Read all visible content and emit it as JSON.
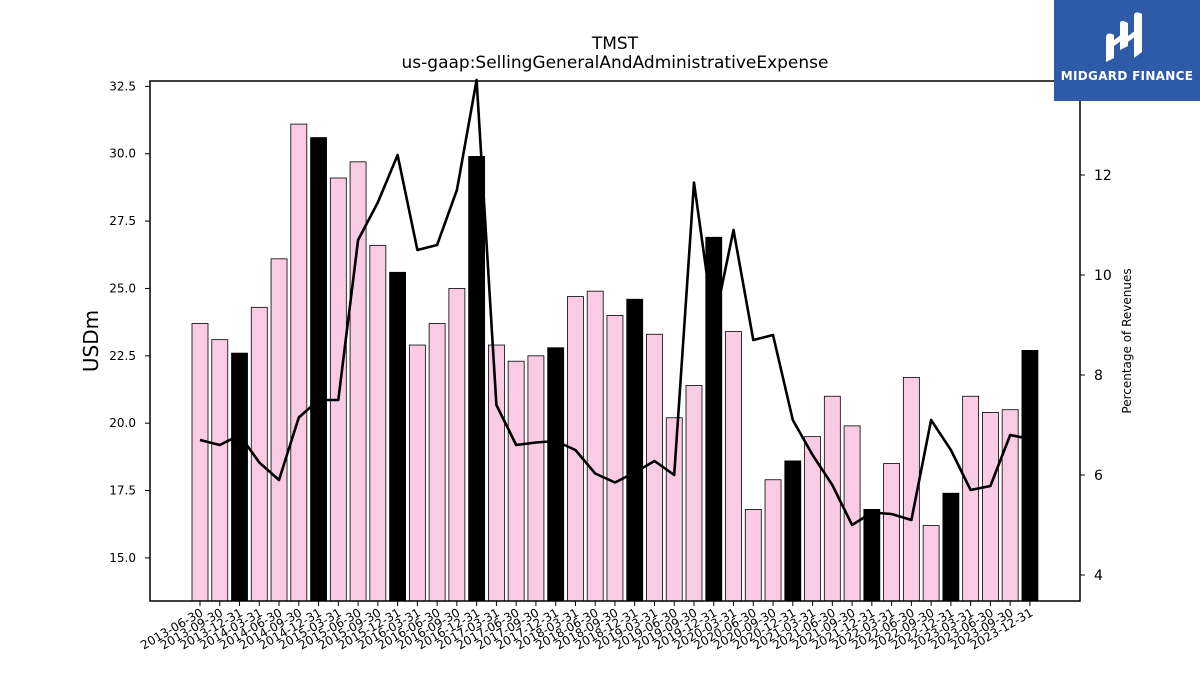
{
  "chart_data": {
    "type": "bar",
    "title": "TMST",
    "subtitle": "us-gaap:SellingGeneralAndAdministrativeExpense",
    "ylabel": "USDm",
    "y2label": "Percentage of Revenues",
    "ylim": [
      13.4,
      32.7
    ],
    "y2lim": [
      3.48,
      13.88
    ],
    "yticks": [
      "15.0",
      "17.5",
      "20.0",
      "22.5",
      "25.0",
      "27.5",
      "30.0",
      "32.5"
    ],
    "y2ticks": [
      "4",
      "6",
      "8",
      "10",
      "12"
    ],
    "categories": [
      "2013-06-30",
      "2013-09-30",
      "2013-12-31",
      "2014-03-31",
      "2014-06-30",
      "2014-09-30",
      "2014-12-31",
      "2015-03-31",
      "2015-06-30",
      "2015-09-30",
      "2015-12-31",
      "2016-03-31",
      "2016-06-30",
      "2016-09-30",
      "2016-12-31",
      "2017-03-31",
      "2017-06-30",
      "2017-09-30",
      "2017-12-31",
      "2018-03-31",
      "2018-06-30",
      "2018-09-30",
      "2018-12-31",
      "2019-03-31",
      "2019-06-30",
      "2019-09-30",
      "2019-12-31",
      "2020-03-31",
      "2020-06-30",
      "2020-09-30",
      "2020-12-31",
      "2021-03-31",
      "2021-06-30",
      "2021-09-30",
      "2021-12-31",
      "2022-03-31",
      "2022-06-30",
      "2022-09-30",
      "2022-12-31",
      "2023-03-31",
      "2023-06-30",
      "2023-09-30",
      "2023-12-31"
    ],
    "series": [
      {
        "type": "bar",
        "values": [
          23.7,
          23.1,
          22.6,
          24.3,
          26.1,
          31.1,
          30.6,
          29.1,
          29.7,
          26.6,
          25.6,
          22.9,
          23.7,
          25.0,
          29.9,
          22.9,
          22.3,
          22.5,
          22.8,
          24.7,
          24.9,
          24.0,
          24.6,
          23.3,
          20.2,
          21.4,
          26.9,
          23.4,
          16.8,
          17.9,
          18.6,
          19.5,
          21.0,
          19.9,
          16.8,
          18.5,
          21.7,
          16.2,
          17.4,
          21.0,
          20.4,
          20.5,
          22.7
        ],
        "colors": {
          "quarter": "#f9cce3",
          "year_end": "#000000"
        }
      },
      {
        "type": "line",
        "values": [
          6.7,
          6.6,
          6.8,
          6.25,
          5.9,
          7.15,
          7.5,
          7.5,
          10.7,
          11.45,
          12.4,
          10.5,
          10.6,
          11.7,
          13.9,
          7.4,
          6.6,
          6.65,
          6.68,
          6.5,
          6.03,
          5.85,
          6.05,
          6.28,
          6.0,
          11.85,
          9.0,
          10.9,
          8.7,
          8.8,
          7.1,
          6.4,
          5.8,
          5.0,
          5.25,
          5.22,
          5.1,
          7.1,
          6.5,
          5.7,
          5.78,
          6.8,
          6.72
        ],
        "color": "#000000"
      }
    ]
  },
  "logo": {
    "text": "MIDGARD FINANCE",
    "bg": "#2e5ba8"
  }
}
